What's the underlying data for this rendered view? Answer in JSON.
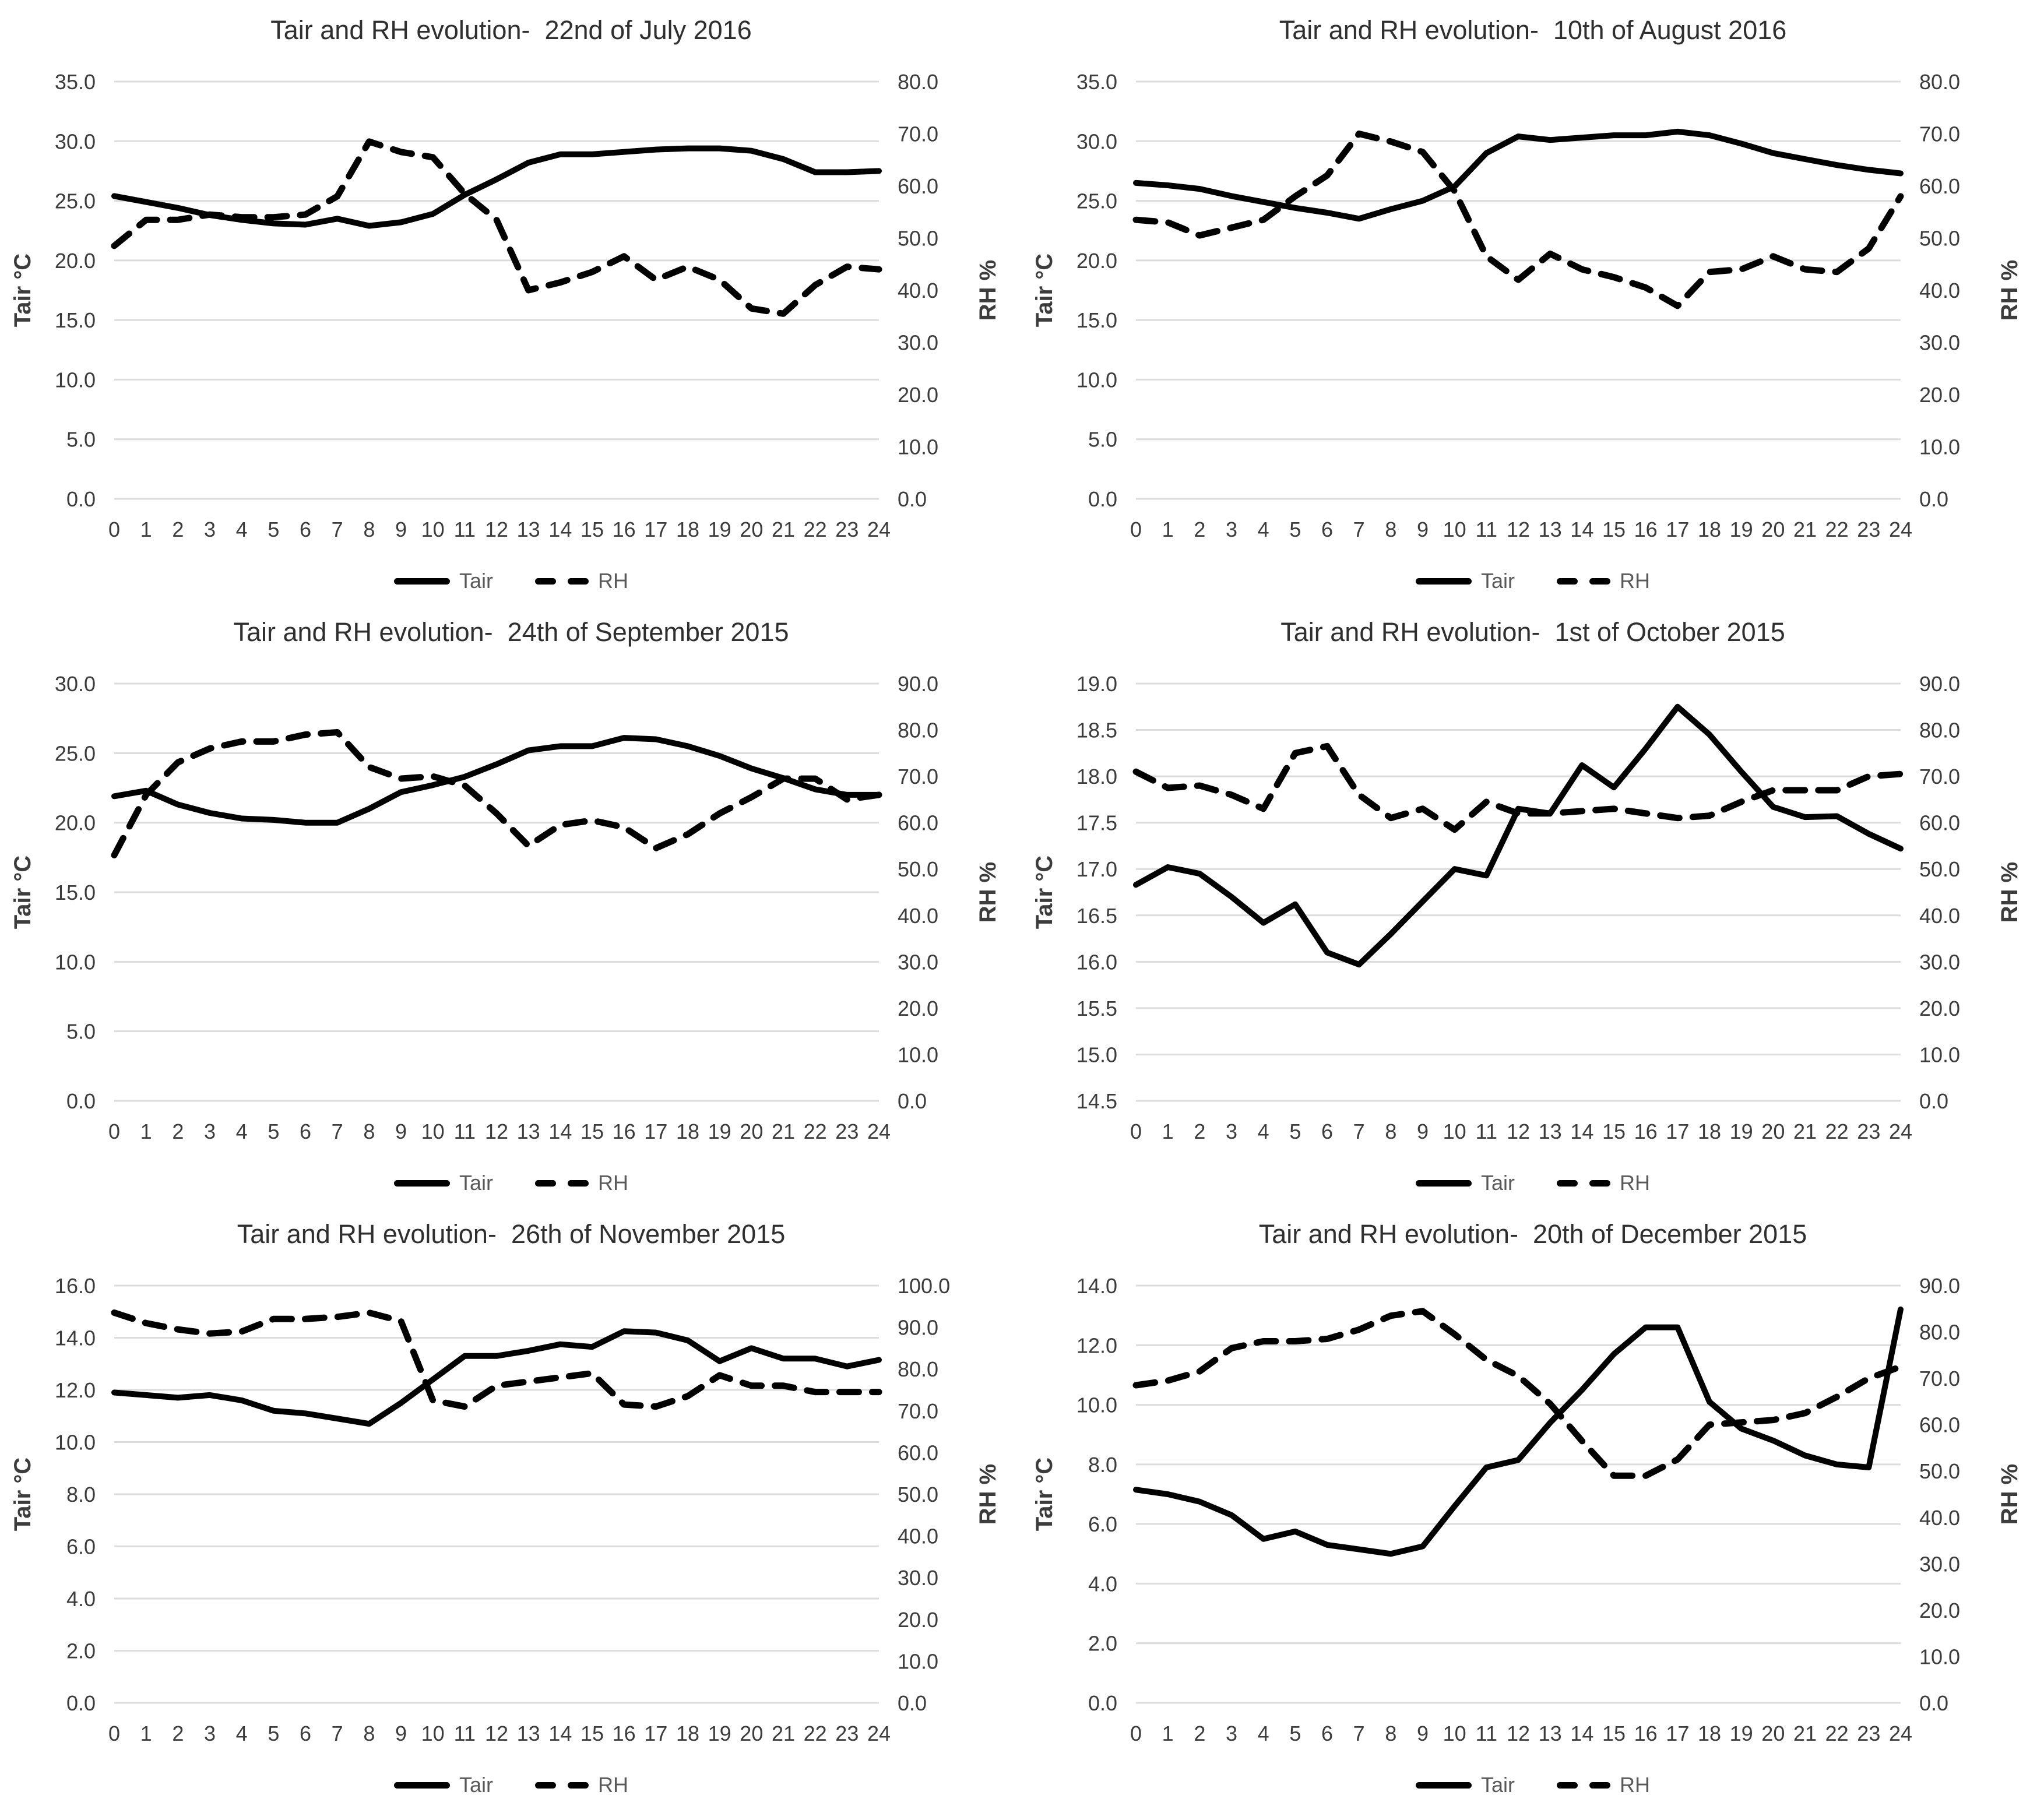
{
  "style": {
    "line_color": "#000000",
    "grid_color": "#dcdcdc",
    "tick_text_color": "#3c3c3c",
    "axis_title_color": "#1f1f1f",
    "legend_text_color": "#595959",
    "background": "#ffffff"
  },
  "legend": {
    "tair_label": "Tair",
    "rh_label": "RH"
  },
  "axes": {
    "left_title": "Tair °C",
    "right_title": "RH %"
  },
  "chart_data": [
    {
      "type": "line",
      "title": "Tair and RH evolution-  22nd of July 2016",
      "x": [
        0,
        1,
        2,
        3,
        4,
        5,
        6,
        7,
        8,
        9,
        10,
        11,
        12,
        13,
        14,
        15,
        16,
        17,
        18,
        19,
        20,
        21,
        22,
        23,
        24
      ],
      "xlabel": "",
      "left_axis": {
        "label": "Tair °C",
        "min": 0,
        "max": 35,
        "step": 5
      },
      "right_axis": {
        "label": "RH %",
        "min": 0,
        "max": 80,
        "step": 10
      },
      "grid": true,
      "legend_position": "bottom",
      "series": [
        {
          "name": "Tair",
          "axis": "left",
          "style": "solid",
          "values": [
            25.4,
            24.9,
            24.4,
            23.8,
            23.4,
            23.1,
            23.0,
            23.5,
            22.9,
            23.2,
            23.9,
            25.5,
            26.8,
            28.2,
            28.9,
            28.9,
            29.1,
            29.3,
            29.4,
            29.4,
            29.2,
            28.5,
            27.4,
            27.4,
            27.5
          ]
        },
        {
          "name": "RH",
          "axis": "right",
          "style": "dashed",
          "values": [
            48.5,
            53.5,
            53.5,
            54.5,
            54.0,
            54.0,
            54.5,
            58.0,
            68.5,
            66.5,
            65.5,
            58.5,
            53.5,
            40.0,
            41.5,
            43.5,
            46.5,
            42.0,
            44.5,
            42.0,
            36.5,
            35.5,
            41.0,
            44.5,
            44.0
          ]
        }
      ]
    },
    {
      "type": "line",
      "title": "Tair and RH evolution-  10th of August 2016",
      "x": [
        0,
        1,
        2,
        3,
        4,
        5,
        6,
        7,
        8,
        9,
        10,
        11,
        12,
        13,
        14,
        15,
        16,
        17,
        18,
        19,
        20,
        21,
        22,
        23,
        24
      ],
      "xlabel": "",
      "left_axis": {
        "label": "Tair °C",
        "min": 0,
        "max": 35,
        "step": 5
      },
      "right_axis": {
        "label": "RH %",
        "min": 0,
        "max": 80,
        "step": 10
      },
      "grid": true,
      "legend_position": "bottom",
      "series": [
        {
          "name": "Tair",
          "axis": "left",
          "style": "solid",
          "values": [
            26.5,
            26.3,
            26.0,
            25.4,
            24.9,
            24.4,
            24.0,
            23.5,
            24.3,
            25.0,
            26.2,
            29.0,
            30.4,
            30.1,
            30.3,
            30.5,
            30.5,
            30.8,
            30.5,
            29.8,
            29.0,
            28.5,
            28.0,
            27.6,
            27.3
          ]
        },
        {
          "name": "RH",
          "axis": "right",
          "style": "dashed",
          "values": [
            53.5,
            53.0,
            50.5,
            52.0,
            53.5,
            58.0,
            62.0,
            70.0,
            68.5,
            66.5,
            59.0,
            46.5,
            42.0,
            47.0,
            44.0,
            42.5,
            40.5,
            37.0,
            43.5,
            44.0,
            46.5,
            44.0,
            43.5,
            48.0,
            58.0
          ]
        }
      ]
    },
    {
      "type": "line",
      "title": "Tair and RH evolution-  24th of September 2015",
      "x": [
        0,
        1,
        2,
        3,
        4,
        5,
        6,
        7,
        8,
        9,
        10,
        11,
        12,
        13,
        14,
        15,
        16,
        17,
        18,
        19,
        20,
        21,
        22,
        23,
        24
      ],
      "xlabel": "",
      "left_axis": {
        "label": "Tair °C",
        "min": 0,
        "max": 30,
        "step": 5
      },
      "right_axis": {
        "label": "RH %",
        "min": 0,
        "max": 90,
        "step": 10
      },
      "grid": true,
      "legend_position": "bottom",
      "series": [
        {
          "name": "Tair",
          "axis": "left",
          "style": "solid",
          "values": [
            21.9,
            22.3,
            21.3,
            20.7,
            20.3,
            20.2,
            20.0,
            20.0,
            21.0,
            22.2,
            22.7,
            23.3,
            24.2,
            25.2,
            25.5,
            25.5,
            26.1,
            26.0,
            25.5,
            24.8,
            23.9,
            23.2,
            22.4,
            22.0,
            22.0
          ]
        },
        {
          "name": "RH",
          "axis": "right",
          "style": "dashed",
          "values": [
            53.0,
            66.0,
            73.0,
            76.0,
            77.5,
            77.5,
            79.0,
            79.5,
            72.0,
            69.5,
            70.0,
            68.0,
            62.0,
            55.0,
            59.5,
            60.5,
            59.0,
            54.5,
            57.5,
            62.0,
            65.5,
            69.5,
            69.5,
            65.0,
            66.0
          ]
        }
      ]
    },
    {
      "type": "line",
      "title": "Tair and RH evolution-  1st of October 2015",
      "x": [
        0,
        1,
        2,
        3,
        4,
        5,
        6,
        7,
        8,
        9,
        10,
        11,
        12,
        13,
        14,
        15,
        16,
        17,
        18,
        19,
        20,
        21,
        22,
        23,
        24
      ],
      "xlabel": "",
      "left_axis": {
        "label": "Tair °C",
        "min": 14.5,
        "max": 19.0,
        "step": 0.5
      },
      "right_axis": {
        "label": "RH %",
        "min": 0,
        "max": 90,
        "step": 10
      },
      "grid": true,
      "legend_position": "bottom",
      "series": [
        {
          "name": "Tair",
          "axis": "left",
          "style": "solid",
          "values": [
            16.83,
            17.02,
            16.95,
            16.7,
            16.42,
            16.62,
            16.1,
            15.97,
            16.3,
            16.65,
            17.0,
            16.93,
            17.65,
            17.6,
            18.12,
            17.88,
            18.3,
            18.75,
            18.45,
            18.05,
            17.67,
            17.56,
            17.57,
            17.38,
            17.22
          ]
        },
        {
          "name": "RH",
          "axis": "right",
          "style": "dashed",
          "values": [
            71.0,
            67.5,
            68.0,
            66.0,
            63.0,
            75.0,
            76.5,
            66.0,
            61.0,
            63.0,
            58.5,
            64.5,
            62.0,
            62.0,
            62.5,
            63.0,
            62.0,
            61.0,
            61.5,
            64.5,
            67.0,
            67.0,
            67.0,
            70.0,
            70.5
          ]
        }
      ]
    },
    {
      "type": "line",
      "title": "Tair and RH evolution-  26th of November 2015",
      "x": [
        0,
        1,
        2,
        3,
        4,
        5,
        6,
        7,
        8,
        9,
        10,
        11,
        12,
        13,
        14,
        15,
        16,
        17,
        18,
        19,
        20,
        21,
        22,
        23,
        24
      ],
      "xlabel": "",
      "left_axis": {
        "label": "Tair °C",
        "min": 0,
        "max": 16,
        "step": 2
      },
      "right_axis": {
        "label": "RH %",
        "min": 0,
        "max": 100,
        "step": 10
      },
      "grid": true,
      "legend_position": "bottom",
      "series": [
        {
          "name": "Tair",
          "axis": "left",
          "style": "solid",
          "values": [
            11.9,
            11.8,
            11.7,
            11.8,
            11.6,
            11.2,
            11.1,
            10.9,
            10.7,
            11.5,
            12.4,
            13.3,
            13.3,
            13.5,
            13.75,
            13.65,
            14.25,
            14.2,
            13.9,
            13.1,
            13.6,
            13.2,
            13.2,
            12.9,
            13.15
          ]
        },
        {
          "name": "RH",
          "axis": "right",
          "style": "dashed",
          "values": [
            93.5,
            91.0,
            89.5,
            88.5,
            89.0,
            92.0,
            92.0,
            92.5,
            93.5,
            91.5,
            72.5,
            71.0,
            76.0,
            77.0,
            78.0,
            79.0,
            71.5,
            71.0,
            73.5,
            78.5,
            76.0,
            76.0,
            74.5,
            74.5,
            74.5
          ]
        }
      ]
    },
    {
      "type": "line",
      "title": "Tair and RH evolution-  20th of December 2015",
      "x": [
        0,
        1,
        2,
        3,
        4,
        5,
        6,
        7,
        8,
        9,
        10,
        11,
        12,
        13,
        14,
        15,
        16,
        17,
        18,
        19,
        20,
        21,
        22,
        23,
        24
      ],
      "xlabel": "",
      "left_axis": {
        "label": "Tair °C",
        "min": 0,
        "max": 14,
        "step": 2
      },
      "right_axis": {
        "label": "RH %",
        "min": 0,
        "max": 90,
        "step": 10
      },
      "grid": true,
      "legend_position": "bottom",
      "series": [
        {
          "name": "Tair",
          "axis": "left",
          "style": "solid",
          "values": [
            7.15,
            7.0,
            6.75,
            6.3,
            5.5,
            5.75,
            5.3,
            5.15,
            5.0,
            5.25,
            6.6,
            7.9,
            8.15,
            9.4,
            10.5,
            11.7,
            12.6,
            12.6,
            10.1,
            9.2,
            8.8,
            8.3,
            8.0,
            7.9,
            13.2
          ]
        },
        {
          "name": "RH",
          "axis": "right",
          "style": "dashed",
          "values": [
            68.5,
            69.5,
            71.5,
            76.5,
            78.0,
            78.0,
            78.5,
            80.5,
            83.5,
            84.5,
            79.5,
            74.0,
            70.5,
            64.5,
            56.5,
            49.0,
            49.0,
            52.5,
            60.0,
            60.5,
            61.0,
            62.5,
            66.0,
            70.0,
            72.5
          ]
        }
      ]
    }
  ]
}
